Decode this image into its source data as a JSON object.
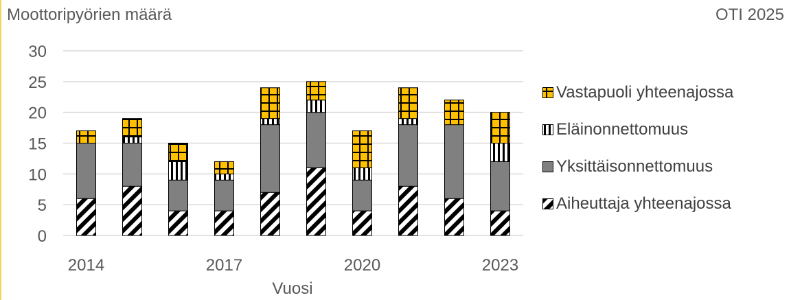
{
  "ylabel_top": "Moottoripyörien määrä",
  "source": "OTI 2025",
  "chart_data": {
    "type": "bar",
    "stacked": true,
    "ylabel": "Moottoripyörien määrä",
    "xlabel": "Vuosi",
    "ylim": [
      0,
      30
    ],
    "yticks": [
      0,
      5,
      10,
      15,
      20,
      25,
      30
    ],
    "grid": true,
    "legend": "right",
    "categories": [
      "2014",
      "2015",
      "2016",
      "2017",
      "2018",
      "2019",
      "2020",
      "2021",
      "2022",
      "2023"
    ],
    "xtick_labels": [
      "2014",
      "",
      "",
      "2017",
      "",
      "",
      "2020",
      "",
      "",
      "2023"
    ],
    "series": [
      {
        "name": "Aiheuttaja yhteenajossa",
        "values": [
          6,
          8,
          4,
          4,
          7,
          11,
          4,
          8,
          6,
          4
        ],
        "pattern": "diagonal-stripes",
        "color": "#000000"
      },
      {
        "name": "Yksittäisonnettomuus",
        "values": [
          9,
          7,
          5,
          5,
          11,
          9,
          5,
          10,
          12,
          8
        ],
        "pattern": "solid",
        "color": "#808080"
      },
      {
        "name": "Eläinonnettomuus",
        "values": [
          0,
          1,
          3,
          1,
          1,
          2,
          2,
          1,
          0,
          3
        ],
        "pattern": "vertical-stripes",
        "color": "#000000"
      },
      {
        "name": "Vastapuoli yhteenajossa",
        "values": [
          2,
          3,
          3,
          2,
          5,
          3,
          6,
          5,
          4,
          5
        ],
        "pattern": "grid",
        "color": "#ffc000"
      }
    ]
  }
}
